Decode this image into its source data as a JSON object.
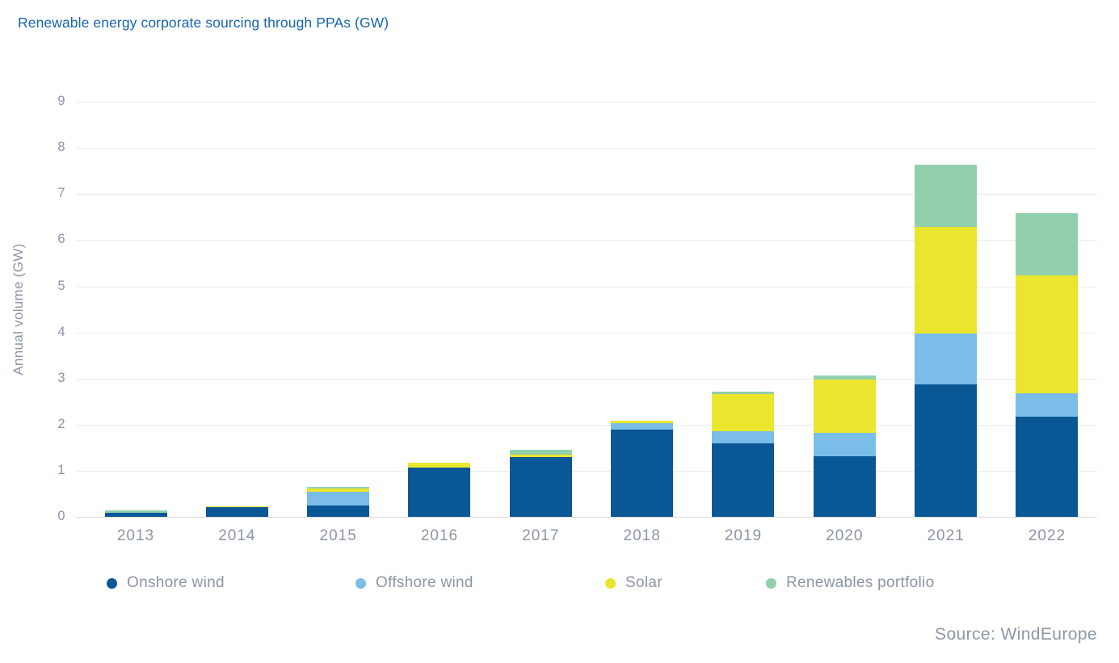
{
  "title": "Renewable energy corporate sourcing through PPAs (GW)",
  "source": "Source: WindEurope",
  "colors": {
    "onshore_wind": "#0a5796",
    "offshore_wind": "#79bde8",
    "solar": "#ebe62d",
    "renewables_portfolio": "#92d0ad",
    "title_text": "#1764af",
    "axis_text": "#8b95a3",
    "gridline": "#eaeaea"
  },
  "chart_data": {
    "type": "bar",
    "stacked": true,
    "title": "Renewable energy corporate sourcing through PPAs (GW)",
    "xlabel": "",
    "ylabel": "Annual volume (GW)",
    "ylim": [
      0,
      9
    ],
    "yticks": [
      0,
      1,
      2,
      3,
      4,
      5,
      6,
      7,
      8,
      9
    ],
    "grid": true,
    "legend_position": "bottom",
    "categories": [
      "2013",
      "2014",
      "2015",
      "2016",
      "2017",
      "2018",
      "2019",
      "2020",
      "2021",
      "2022"
    ],
    "series": [
      {
        "name": "Onshore wind",
        "color": "#0a5796",
        "values": [
          0.08,
          0.21,
          0.25,
          1.06,
          1.3,
          1.89,
          1.6,
          1.32,
          2.88,
          2.18
        ]
      },
      {
        "name": "Offshore wind",
        "color": "#79bde8",
        "values": [
          0.0,
          0.0,
          0.29,
          0.0,
          0.0,
          0.14,
          0.25,
          0.5,
          1.1,
          0.5
        ]
      },
      {
        "name": "Solar",
        "color": "#ebe62d",
        "values": [
          0.0,
          0.02,
          0.08,
          0.12,
          0.04,
          0.06,
          0.82,
          1.15,
          2.3,
          2.55
        ]
      },
      {
        "name": "Renewables portfolio",
        "color": "#92d0ad",
        "values": [
          0.06,
          0.0,
          0.02,
          0.0,
          0.11,
          0.0,
          0.05,
          0.1,
          1.35,
          1.36
        ]
      }
    ],
    "totals": [
      0.14,
      0.23,
      0.64,
      1.18,
      1.45,
      2.09,
      2.72,
      3.07,
      7.63,
      6.59
    ]
  },
  "legend": {
    "items": [
      "Onshore wind",
      "Offshore wind",
      "Solar",
      "Renewables portfolio"
    ]
  }
}
